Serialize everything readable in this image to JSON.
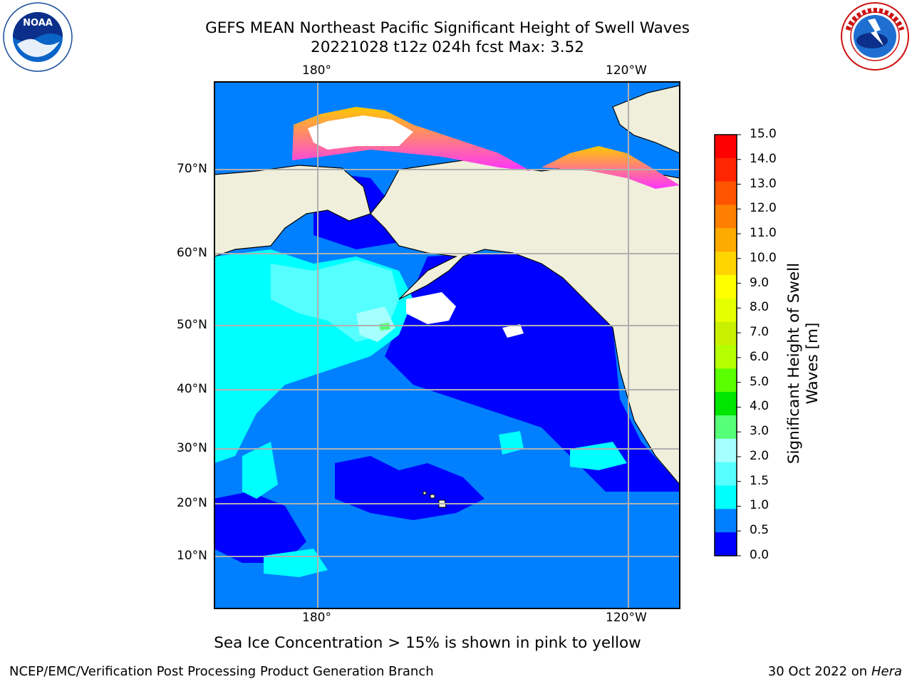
{
  "title_line1": "GEFS MEAN Northeast Pacific Significant Height of Swell Waves",
  "title_line2": "20221028 t12z 024h fcst   Max: 3.52",
  "axis": {
    "lon_top": [
      "180°",
      "120°W"
    ],
    "lon_bottom": [
      "180°",
      "120°W"
    ],
    "lat": [
      "70°N",
      "60°N",
      "50°N",
      "40°N",
      "30°N",
      "20°N",
      "10°N"
    ]
  },
  "colorbar": {
    "label_line1": "Significant Height of Swell",
    "label_line2": "Waves [m]",
    "ticks": [
      "15.0",
      "14.0",
      "13.0",
      "12.0",
      "11.0",
      "10.0",
      "9.0",
      "8.0",
      "7.0",
      "6.0",
      "5.0",
      "4.0",
      "3.0",
      "2.0",
      "1.5",
      "1.0",
      "0.5",
      "0.0"
    ],
    "colors_top_to_bottom": [
      "#ff0000",
      "#ff2600",
      "#ff5500",
      "#ff8000",
      "#ffaa00",
      "#ffd400",
      "#ffff00",
      "#e6ff00",
      "#c8f000",
      "#b4ff00",
      "#5aff00",
      "#00e600",
      "#55ff77",
      "#a6ffff",
      "#55ffff",
      "#00ffff",
      "#0080ff",
      "#0000ff"
    ]
  },
  "caption": "Sea Ice Concentration > 15% is shown in pink to yellow",
  "footer_left": "NCEP/EMC/Verification Post Processing Product Generation Branch",
  "footer_right_prefix": "30 Oct 2022 on ",
  "footer_right_machine": "Hera",
  "logos": {
    "left": "noaa-logo",
    "right": "nws-logo",
    "left_text": "NOAA"
  },
  "colors": {
    "land": "#efefdc",
    "ocean_low": "#0000ff",
    "ocean_mid": "#0080ff",
    "swell_cyan": "#00ffff",
    "swell_light": "#55ffff",
    "ice": "#ff33ff",
    "grid": "#b0b0b0"
  }
}
